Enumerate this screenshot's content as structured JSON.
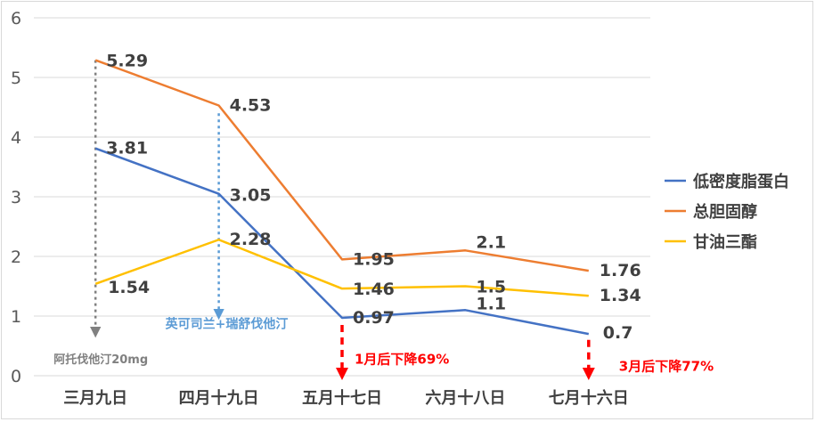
{
  "chart_data": {
    "type": "line",
    "categories": [
      "三月九日",
      "四月十九日",
      "五月十七日",
      "六月十八日",
      "七月十六日"
    ],
    "series": [
      {
        "name": "低密度脂蛋白",
        "color": "#4472c4",
        "values": [
          3.81,
          3.05,
          0.97,
          1.1,
          0.7
        ],
        "labels": [
          "3.81",
          "3.05",
          "0.97",
          "1.1",
          "0.7"
        ]
      },
      {
        "name": "总胆固醇",
        "color": "#ed7d31",
        "values": [
          5.29,
          4.53,
          1.95,
          2.1,
          1.76
        ],
        "labels": [
          "5.29",
          "4.53",
          "1.95",
          "2.1",
          "1.76"
        ]
      },
      {
        "name": "甘油三酯",
        "color": "#ffc000",
        "values": [
          1.54,
          2.28,
          1.46,
          1.5,
          1.34
        ],
        "labels": [
          "1.54",
          "2.28",
          "1.46",
          "1.5",
          "1.34"
        ]
      }
    ],
    "yticks": [
      "0",
      "1",
      "2",
      "3",
      "4",
      "5",
      "6"
    ],
    "ylim": [
      0,
      6
    ],
    "grid": true,
    "legend": "right",
    "annotations": [
      {
        "id": "drug1",
        "text": "阿托伐他汀20mg",
        "category_index": 0,
        "y_from": 5.29,
        "y_to": 0.7,
        "color": "#808080"
      },
      {
        "id": "drug2",
        "text": "英可司兰+瑞舒伐他汀",
        "category_index": 1,
        "y_from": 4.4,
        "y_to": 1.0,
        "color": "#5b9bd5"
      },
      {
        "id": "drop1",
        "text": "1月后下降69%",
        "category_index": 2,
        "y_from": 0.85,
        "y_to": 0.0,
        "color": "#ff0000"
      },
      {
        "id": "drop2",
        "text": "3月后下降77%",
        "category_index": 4,
        "y_from": 0.6,
        "y_to": 0.0,
        "color": "#ff0000"
      }
    ]
  }
}
